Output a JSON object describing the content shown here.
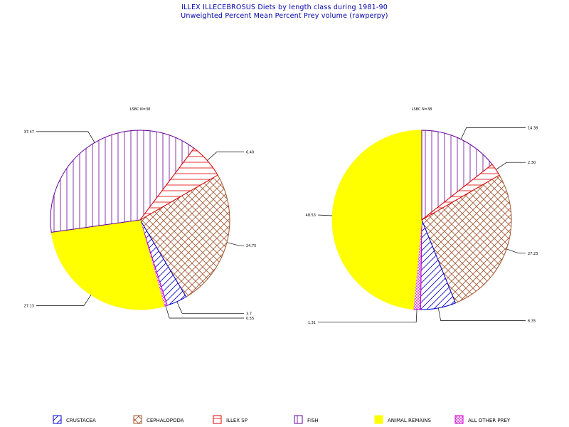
{
  "title": "ILLEX ILLECEBROSUS Diets by length class during 1981-90",
  "subtitle": "Unweighted Percent Mean Percent Prey  volume (rawperpy)",
  "legend": [
    {
      "key": "crustacea",
      "label": "CRUSTACEA",
      "color": "#0000cc",
      "pattern": "diag-up"
    },
    {
      "key": "cephalopoda",
      "label": "CEPHALOPODA",
      "color": "#a0522d",
      "pattern": "crosshatch"
    },
    {
      "key": "illex",
      "label": "ILLEX SP",
      "color": "#dd0000",
      "pattern": "horizontal"
    },
    {
      "key": "fish",
      "label": "FISH",
      "color": "#660099",
      "pattern": "vertical"
    },
    {
      "key": "animal",
      "label": "ANIMAL REMAINS",
      "color": "#ffff00",
      "pattern": "solid"
    },
    {
      "key": "other",
      "label": "ALL OTHER PREY",
      "color": "#cc00cc",
      "pattern": "dense-cross"
    }
  ],
  "chart_data": [
    {
      "type": "pie",
      "title": "LSBC N=38",
      "slices": [
        {
          "category": "CEPHALOPODA",
          "value": 24.75,
          "label": "24.75"
        },
        {
          "category": "CRUSTACEA",
          "value": 3.7,
          "label": "3.7"
        },
        {
          "category": "ALL OTHER PREY",
          "value": 0.55,
          "label": "0.55"
        },
        {
          "category": "ANIMAL REMAINS",
          "value": 27.13,
          "label": "27.13"
        },
        {
          "category": "FISH",
          "value": 37.47,
          "label": "37.47"
        },
        {
          "category": "ILLEX SP",
          "value": 6.4,
          "label": "6.40"
        }
      ]
    },
    {
      "type": "pie",
      "title": "LSBC N=38",
      "slices": [
        {
          "category": "CEPHALOPODA",
          "value": 27.23,
          "label": "27.23"
        },
        {
          "category": "CRUSTACEA",
          "value": 6.35,
          "label": "6.35"
        },
        {
          "category": "ALL OTHER PREY",
          "value": 1.31,
          "label": "1.31"
        },
        {
          "category": "ANIMAL REMAINS",
          "value": 48.53,
          "label": "48.53"
        },
        {
          "category": "FISH",
          "value": 14.38,
          "label": "14.38"
        },
        {
          "category": "ILLEX SP",
          "value": 2.3,
          "label": "2.30"
        }
      ]
    }
  ]
}
